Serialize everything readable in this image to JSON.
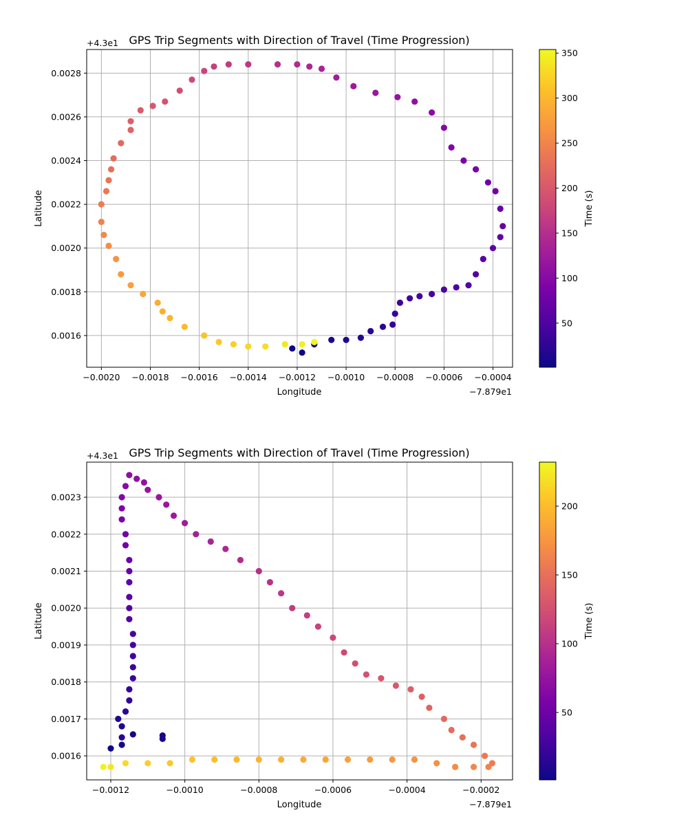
{
  "chart_data": [
    {
      "type": "scatter",
      "title": "GPS Trip Segments with Direction of Travel (Time Progression)",
      "xlabel": "Longitude",
      "ylabel": "Latitude",
      "x_offset_text": "−7.879e1",
      "y_offset_text": "+4.3e1",
      "xlim": [
        -0.00206,
        -0.00032
      ],
      "ylim": [
        0.001455,
        0.002908
      ],
      "x_ticks": [
        "−0.0020",
        "−0.0018",
        "−0.0016",
        "−0.0014",
        "−0.0012",
        "−0.0010",
        "−0.0008",
        "−0.0006",
        "−0.0004"
      ],
      "y_ticks": [
        "0.0016",
        "0.0018",
        "0.0020",
        "0.0022",
        "0.0024",
        "0.0026",
        "0.0028"
      ],
      "grid": true,
      "colorbar": {
        "label": "Time (s)",
        "range": [
          1,
          354
        ],
        "colormap": "plasma",
        "ticks": [
          "50",
          "100",
          "150",
          "200",
          "250",
          "300",
          "350"
        ]
      },
      "series": [
        {
          "points": [
            [
              -0.00122,
              0.001541,
              1
            ],
            [
              -0.00118,
              0.001522,
              3
            ],
            [
              -0.00113,
              0.00156,
              6
            ],
            [
              -0.00106,
              0.00158,
              10
            ],
            [
              -0.001,
              0.00158,
              14
            ],
            [
              -0.00094,
              0.00159,
              18
            ],
            [
              -0.0009,
              0.00162,
              22
            ],
            [
              -0.00085,
              0.00164,
              26
            ],
            [
              -0.00081,
              0.00165,
              29
            ],
            [
              -0.0008,
              0.0017,
              32
            ],
            [
              -0.00078,
              0.00175,
              35
            ],
            [
              -0.00074,
              0.00177,
              38
            ],
            [
              -0.0007,
              0.00178,
              41
            ],
            [
              -0.00065,
              0.00179,
              44
            ],
            [
              -0.0006,
              0.00181,
              47
            ],
            [
              -0.00055,
              0.00182,
              50
            ],
            [
              -0.0005,
              0.00183,
              53
            ],
            [
              -0.00047,
              0.00188,
              56
            ],
            [
              -0.00044,
              0.00195,
              59
            ],
            [
              -0.0004,
              0.002,
              62
            ],
            [
              -0.00037,
              0.00205,
              65
            ],
            [
              -0.00036,
              0.0021,
              68
            ],
            [
              -0.00037,
              0.00218,
              71
            ],
            [
              -0.00039,
              0.00226,
              75
            ],
            [
              -0.00042,
              0.0023,
              79
            ],
            [
              -0.00047,
              0.00236,
              84
            ],
            [
              -0.00052,
              0.0024,
              89
            ],
            [
              -0.00057,
              0.00246,
              94
            ],
            [
              -0.0006,
              0.00255,
              99
            ],
            [
              -0.00065,
              0.00262,
              104
            ],
            [
              -0.00072,
              0.00267,
              109
            ],
            [
              -0.00079,
              0.00269,
              114
            ],
            [
              -0.00088,
              0.00271,
              119
            ],
            [
              -0.00097,
              0.00274,
              124
            ],
            [
              -0.00104,
              0.00278,
              130
            ],
            [
              -0.0011,
              0.00282,
              136
            ],
            [
              -0.00115,
              0.00283,
              141
            ],
            [
              -0.0012,
              0.00284,
              146
            ],
            [
              -0.00128,
              0.00284,
              152
            ],
            [
              -0.0014,
              0.00284,
              160
            ],
            [
              -0.00148,
              0.00284,
              166
            ],
            [
              -0.00154,
              0.00283,
              171
            ],
            [
              -0.00158,
              0.00281,
              176
            ],
            [
              -0.00163,
              0.00277,
              182
            ],
            [
              -0.00168,
              0.00272,
              188
            ],
            [
              -0.00174,
              0.00267,
              194
            ],
            [
              -0.00179,
              0.00265,
              199
            ],
            [
              -0.00184,
              0.00263,
              204
            ],
            [
              -0.00188,
              0.00258,
              209
            ],
            [
              -0.00188,
              0.00254,
              213
            ],
            [
              -0.00192,
              0.00248,
              218
            ],
            [
              -0.00195,
              0.00241,
              223
            ],
            [
              -0.00196,
              0.00236,
              228
            ],
            [
              -0.00197,
              0.00231,
              232
            ],
            [
              -0.00198,
              0.00226,
              237
            ],
            [
              -0.002,
              0.0022,
              242
            ],
            [
              -0.002,
              0.00212,
              248
            ],
            [
              -0.00199,
              0.00206,
              254
            ],
            [
              -0.00197,
              0.00201,
              259
            ],
            [
              -0.00194,
              0.00195,
              265
            ],
            [
              -0.00192,
              0.00188,
              271
            ],
            [
              -0.00188,
              0.00183,
              277
            ],
            [
              -0.00183,
              0.00179,
              283
            ],
            [
              -0.00177,
              0.00175,
              289
            ],
            [
              -0.00175,
              0.00171,
              293
            ],
            [
              -0.00172,
              0.00168,
              297
            ],
            [
              -0.00166,
              0.00164,
              303
            ],
            [
              -0.00158,
              0.0016,
              310
            ],
            [
              -0.00152,
              0.00157,
              316
            ],
            [
              -0.00146,
              0.00156,
              321
            ],
            [
              -0.0014,
              0.00155,
              327
            ],
            [
              -0.00133,
              0.00155,
              333
            ],
            [
              -0.00125,
              0.00156,
              340
            ],
            [
              -0.00118,
              0.00156,
              346
            ],
            [
              -0.00113,
              0.00157,
              352
            ]
          ]
        }
      ]
    },
    {
      "type": "scatter",
      "title": "GPS Trip Segments with Direction of Travel (Time Progression)",
      "xlabel": "Longitude",
      "ylabel": "Latitude",
      "x_offset_text": "−7.879e1",
      "y_offset_text": "+4.3e1",
      "xlim": [
        -0.001265,
        -0.000115
      ],
      "ylim": [
        0.001535,
        0.002395
      ],
      "x_ticks": [
        "−0.0012",
        "−0.0010",
        "−0.0008",
        "−0.0006",
        "−0.0004",
        "−0.0002"
      ],
      "y_ticks": [
        "0.0016",
        "0.0017",
        "0.0018",
        "0.0019",
        "0.0020",
        "0.0021",
        "0.0022",
        "0.0023"
      ],
      "grid": true,
      "colorbar": {
        "label": "Time (s)",
        "range": [
          1,
          232
        ],
        "colormap": "plasma",
        "ticks": [
          "50",
          "100",
          "150",
          "200"
        ]
      },
      "series": [
        {
          "points": [
            [
              -0.0012,
              0.00162,
              1
            ],
            [
              -0.00117,
              0.00163,
              3
            ],
            [
              -0.00114,
              0.001658,
              5
            ],
            [
              -0.00106,
              0.001655,
              7
            ],
            [
              -0.00106,
              0.001646,
              8
            ],
            [
              -0.00118,
              0.0017,
              10
            ],
            [
              -0.00117,
              0.00168,
              12
            ],
            [
              -0.00117,
              0.00165,
              14
            ],
            [
              -0.00116,
              0.00172,
              16
            ],
            [
              -0.00115,
              0.00175,
              18
            ],
            [
              -0.00115,
              0.00178,
              20
            ],
            [
              -0.00114,
              0.00181,
              22
            ],
            [
              -0.00114,
              0.00184,
              24
            ],
            [
              -0.00114,
              0.00187,
              26
            ],
            [
              -0.00114,
              0.0019,
              28
            ],
            [
              -0.00114,
              0.00193,
              30
            ],
            [
              -0.00115,
              0.00197,
              33
            ],
            [
              -0.00115,
              0.002,
              36
            ],
            [
              -0.00115,
              0.00203,
              39
            ],
            [
              -0.00115,
              0.00207,
              42
            ],
            [
              -0.00115,
              0.0021,
              45
            ],
            [
              -0.00115,
              0.00213,
              48
            ],
            [
              -0.00116,
              0.00217,
              51
            ],
            [
              -0.00116,
              0.0022,
              54
            ],
            [
              -0.00117,
              0.00224,
              57
            ],
            [
              -0.00117,
              0.00227,
              60
            ],
            [
              -0.00117,
              0.0023,
              63
            ],
            [
              -0.00116,
              0.00233,
              66
            ],
            [
              -0.00115,
              0.00236,
              69
            ],
            [
              -0.00113,
              0.00235,
              71
            ],
            [
              -0.00111,
              0.00234,
              73
            ],
            [
              -0.0011,
              0.00232,
              75
            ],
            [
              -0.00107,
              0.0023,
              77
            ],
            [
              -0.00105,
              0.00228,
              79
            ],
            [
              -0.00103,
              0.00225,
              81
            ],
            [
              -0.001,
              0.00223,
              84
            ],
            [
              -0.00097,
              0.0022,
              87
            ],
            [
              -0.00093,
              0.00218,
              90
            ],
            [
              -0.00089,
              0.00216,
              93
            ],
            [
              -0.00085,
              0.00213,
              96
            ],
            [
              -0.0008,
              0.0021,
              99
            ],
            [
              -0.00077,
              0.00207,
              102
            ],
            [
              -0.00074,
              0.00204,
              105
            ],
            [
              -0.00071,
              0.002,
              108
            ],
            [
              -0.00067,
              0.00198,
              111
            ],
            [
              -0.00064,
              0.00195,
              114
            ],
            [
              -0.0006,
              0.00192,
              117
            ],
            [
              -0.00057,
              0.00188,
              120
            ],
            [
              -0.00054,
              0.00185,
              123
            ],
            [
              -0.00051,
              0.00182,
              126
            ],
            [
              -0.00047,
              0.00181,
              129
            ],
            [
              -0.00043,
              0.00179,
              132
            ],
            [
              -0.00039,
              0.00178,
              135
            ],
            [
              -0.00036,
              0.00176,
              138
            ],
            [
              -0.00034,
              0.00173,
              141
            ],
            [
              -0.0003,
              0.0017,
              144
            ],
            [
              -0.00028,
              0.00167,
              147
            ],
            [
              -0.00025,
              0.00165,
              150
            ],
            [
              -0.00022,
              0.00163,
              153
            ],
            [
              -0.00019,
              0.0016,
              156
            ],
            [
              -0.00017,
              0.00158,
              159
            ],
            [
              -0.00018,
              0.00157,
              162
            ],
            [
              -0.00022,
              0.00157,
              165
            ],
            [
              -0.00027,
              0.00157,
              168
            ],
            [
              -0.00032,
              0.00158,
              171
            ],
            [
              -0.00038,
              0.00159,
              174
            ],
            [
              -0.00044,
              0.00159,
              177
            ],
            [
              -0.0005,
              0.00159,
              180
            ],
            [
              -0.00056,
              0.00159,
              183
            ],
            [
              -0.00062,
              0.00159,
              186
            ],
            [
              -0.00068,
              0.00159,
              189
            ],
            [
              -0.00074,
              0.00159,
              192
            ],
            [
              -0.0008,
              0.00159,
              195
            ],
            [
              -0.00086,
              0.00159,
              198
            ],
            [
              -0.00092,
              0.00159,
              201
            ],
            [
              -0.00098,
              0.00159,
              204
            ],
            [
              -0.00104,
              0.00158,
              207
            ],
            [
              -0.0011,
              0.00158,
              211
            ],
            [
              -0.00116,
              0.00158,
              216
            ],
            [
              -0.0012,
              0.00157,
              222
            ],
            [
              -0.00122,
              0.00157,
              228
            ]
          ]
        }
      ]
    }
  ]
}
